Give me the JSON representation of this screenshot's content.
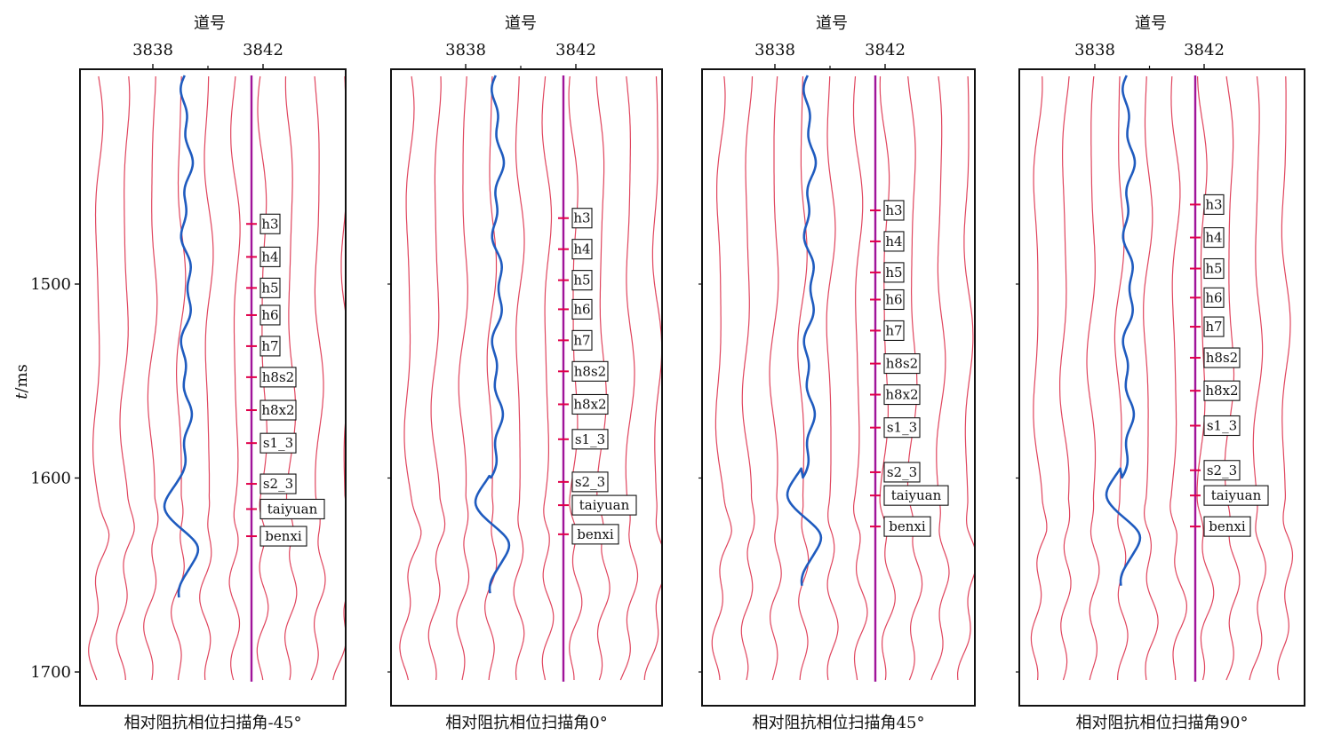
{
  "chart_data": {
    "type": "line",
    "y_axis": {
      "label_italic": "t",
      "label_rest": "/ms",
      "ticks": [
        1500,
        1600,
        1700
      ],
      "ylim": [
        1380,
        1710
      ],
      "inverted": true
    },
    "x_axis": {
      "label": "道号",
      "ticks": [
        3838,
        3842
      ],
      "position": "top"
    },
    "panels": [
      {
        "caption": "相对阻抗相位扫描角-45°",
        "well_markers": [
          {
            "name": "h3",
            "t": 1469
          },
          {
            "name": "h4",
            "t": 1486
          },
          {
            "name": "h5",
            "t": 1502
          },
          {
            "name": "h6",
            "t": 1516
          },
          {
            "name": "h7",
            "t": 1532
          },
          {
            "name": "h8s2",
            "t": 1548
          },
          {
            "name": "h8x2",
            "t": 1565
          },
          {
            "name": "s1_3",
            "t": 1582
          },
          {
            "name": "s2_3",
            "t": 1603
          },
          {
            "name": "taiyuan",
            "t": 1616
          },
          {
            "name": "benxi",
            "t": 1630
          }
        ]
      },
      {
        "caption": "相对阻抗相位扫描角0°",
        "well_markers": [
          {
            "name": "h3",
            "t": 1466
          },
          {
            "name": "h4",
            "t": 1482
          },
          {
            "name": "h5",
            "t": 1498
          },
          {
            "name": "h6",
            "t": 1513
          },
          {
            "name": "h7",
            "t": 1529
          },
          {
            "name": "h8s2",
            "t": 1545
          },
          {
            "name": "h8x2",
            "t": 1562
          },
          {
            "name": "s1_3",
            "t": 1580
          },
          {
            "name": "s2_3",
            "t": 1602
          },
          {
            "name": "taiyuan",
            "t": 1614
          },
          {
            "name": "benxi",
            "t": 1629
          }
        ]
      },
      {
        "caption": "相对阻抗相位扫描角45°",
        "well_markers": [
          {
            "name": "h3",
            "t": 1462
          },
          {
            "name": "h4",
            "t": 1478
          },
          {
            "name": "h5",
            "t": 1494
          },
          {
            "name": "h6",
            "t": 1508
          },
          {
            "name": "h7",
            "t": 1524
          },
          {
            "name": "h8s2",
            "t": 1541
          },
          {
            "name": "h8x2",
            "t": 1557
          },
          {
            "name": "s1_3",
            "t": 1574
          },
          {
            "name": "s2_3",
            "t": 1597
          },
          {
            "name": "taiyuan",
            "t": 1609
          },
          {
            "name": "benxi",
            "t": 1625
          }
        ]
      },
      {
        "caption": "相对阻抗相位扫描角90°",
        "well_markers": [
          {
            "name": "h3",
            "t": 1459
          },
          {
            "name": "h4",
            "t": 1476
          },
          {
            "name": "h5",
            "t": 1492
          },
          {
            "name": "h6",
            "t": 1507
          },
          {
            "name": "h7",
            "t": 1522
          },
          {
            "name": "h8s2",
            "t": 1538
          },
          {
            "name": "h8x2",
            "t": 1555
          },
          {
            "name": "s1_3",
            "t": 1573
          },
          {
            "name": "s2_3",
            "t": 1596
          },
          {
            "name": "taiyuan",
            "t": 1609
          },
          {
            "name": "benxi",
            "t": 1625
          }
        ]
      }
    ],
    "colors": {
      "traces": "#e0455e",
      "well": "#a0149a",
      "marker": "#e0004a",
      "impedance_curve": "#1f5bbf",
      "frame": "#111111"
    }
  }
}
